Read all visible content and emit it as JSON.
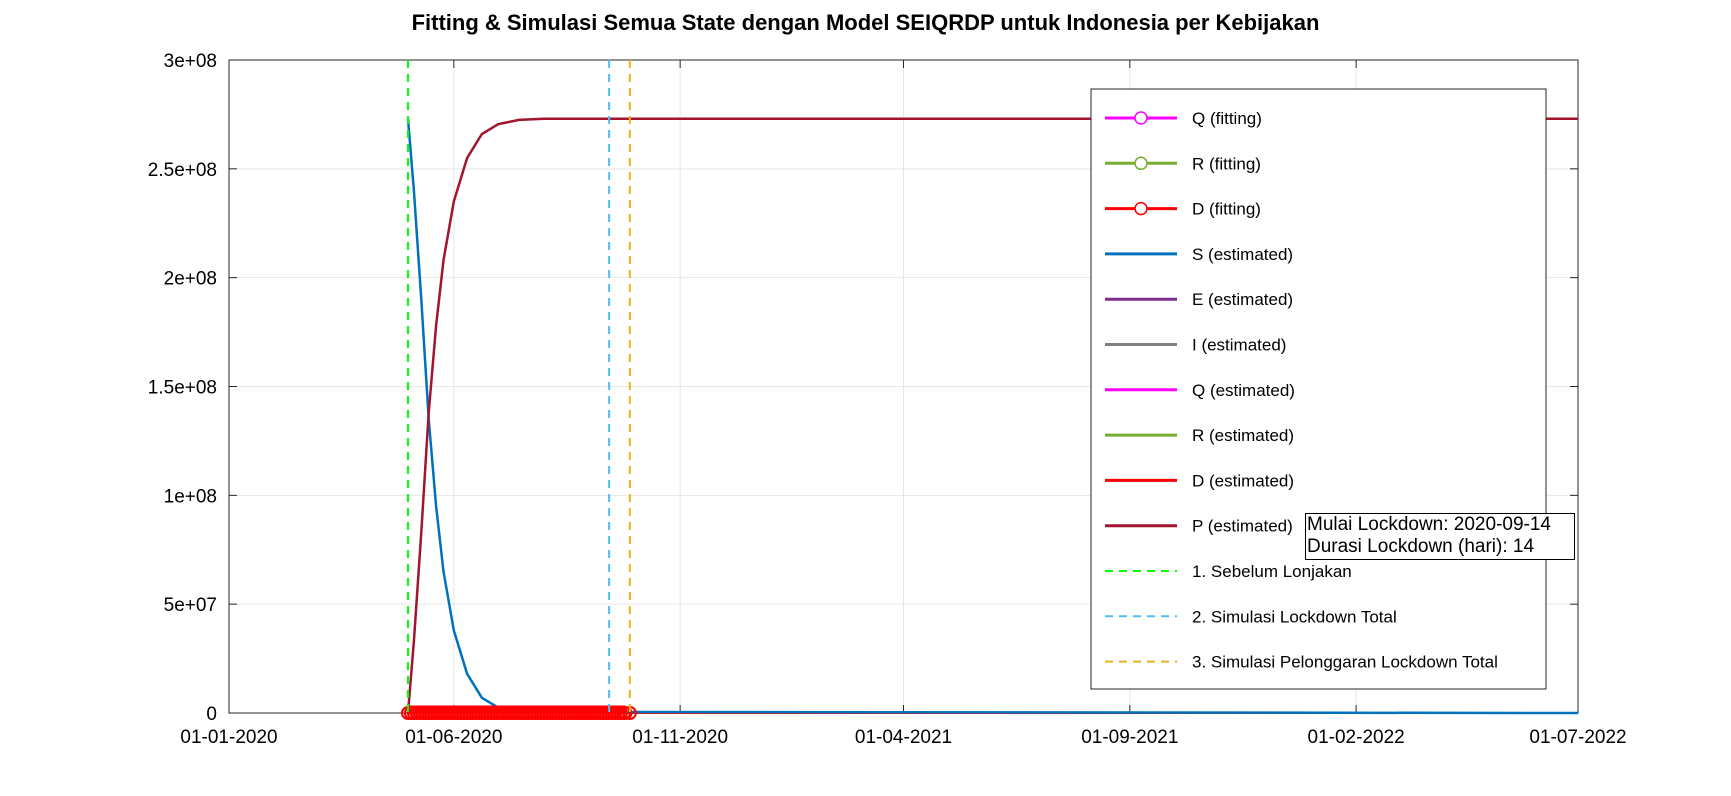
{
  "chart_data": {
    "type": "line",
    "title": "Fitting & Simulasi Semua State dengan Model SEIQRDP untuk Indonesia per Kebijakan",
    "xlabel": "",
    "ylabel": "",
    "x_range": [
      "2020-01-01",
      "2022-07-01"
    ],
    "xticks": [
      "01-01-2020",
      "01-06-2020",
      "01-11-2020",
      "01-04-2021",
      "01-09-2021",
      "01-02-2022",
      "01-07-2022"
    ],
    "ylim": [
      0,
      300000000
    ],
    "yticks": [
      "0",
      "5e+07",
      "1e+08",
      "1.5e+08",
      "2e+08",
      "2.5e+08",
      "3e+08"
    ],
    "grid": true,
    "legend_position": "upper-right",
    "population": 273000000,
    "series": [
      {
        "name": "Q (fitting)",
        "color": "#ff00ff",
        "style": "solid-marker-circle"
      },
      {
        "name": "R (fitting)",
        "color": "#77ac30",
        "style": "solid-marker-circle"
      },
      {
        "name": "D (fitting)",
        "color": "#ff0000",
        "style": "solid-marker-circle"
      },
      {
        "name": "S (estimated)",
        "color": "#0072bd",
        "style": "solid"
      },
      {
        "name": "E (estimated)",
        "color": "#7e2f8e",
        "style": "solid"
      },
      {
        "name": "I (estimated)",
        "color": "#808080",
        "style": "solid"
      },
      {
        "name": "Q (estimated)",
        "color": "#ff00ff",
        "style": "solid"
      },
      {
        "name": "R (estimated)",
        "color": "#77ac30",
        "style": "solid"
      },
      {
        "name": "D (estimated)",
        "color": "#ff0000",
        "style": "solid"
      },
      {
        "name": "P (estimated)",
        "color": "#a2142f",
        "style": "solid"
      },
      {
        "name": "1. Sebelum Lonjakan",
        "color": "#00ff00",
        "style": "dashed"
      },
      {
        "name": "2. Simulasi Lockdown Total",
        "color": "#4dbeee",
        "style": "dashed"
      },
      {
        "name": "3. Simulasi Pelonggaran Lockdown Total",
        "color": "#edb120",
        "style": "dashed"
      }
    ],
    "estimated_curves": {
      "S": {
        "x": [
          "2020-05-01",
          "2020-05-05",
          "2020-05-10",
          "2020-05-15",
          "2020-05-20",
          "2020-05-25",
          "2020-06-01",
          "2020-06-10",
          "2020-06-20",
          "2020-07-01",
          "2020-07-15",
          "2022-07-01"
        ],
        "y": [
          273000000,
          240000000,
          190000000,
          135000000,
          95000000,
          65000000,
          38000000,
          18000000,
          7000000,
          2500000,
          500000,
          0
        ]
      },
      "P": {
        "x": [
          "2020-05-01",
          "2020-05-05",
          "2020-05-10",
          "2020-05-15",
          "2020-05-20",
          "2020-05-25",
          "2020-06-01",
          "2020-06-10",
          "2020-06-20",
          "2020-07-01",
          "2020-07-15",
          "2020-08-01",
          "2022-07-01"
        ],
        "y": [
          0,
          33000000,
          83000000,
          138000000,
          178000000,
          208000000,
          235000000,
          255000000,
          266000000,
          270500000,
          272500000,
          273000000,
          273000000
        ]
      }
    },
    "fitting_points": {
      "D": {
        "x_start": "2020-05-01",
        "x_end": "2020-09-25",
        "y": 0
      },
      "D_marker": {
        "x": "2020-09-28",
        "y": 0
      }
    },
    "policy_lines": [
      {
        "name": "1. Sebelum Lonjakan",
        "date": "2020-05-01"
      },
      {
        "name": "2. Simulasi Lockdown Total",
        "date": "2020-09-14"
      },
      {
        "name": "3. Simulasi Pelonggaran Lockdown Total",
        "date": "2020-09-28"
      }
    ],
    "annotation": [
      "Mulai Lockdown: 2020-09-14",
      "Durasi Lockdown (hari): 14"
    ]
  }
}
